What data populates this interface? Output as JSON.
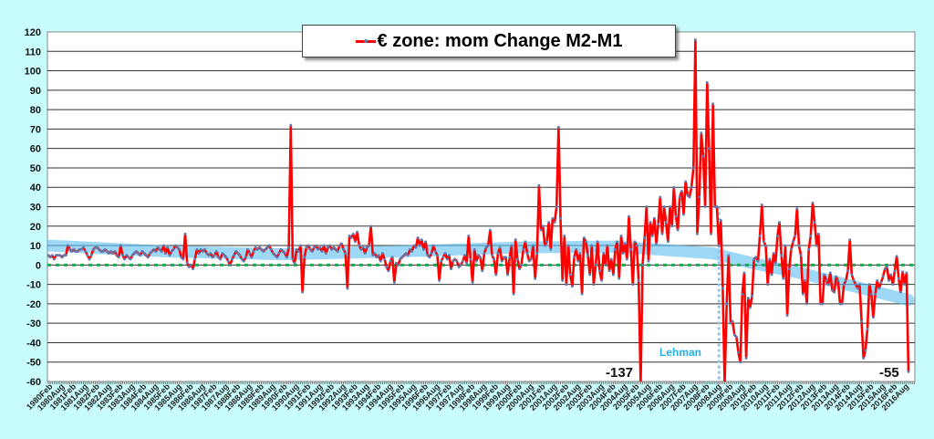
{
  "chart_data": {
    "type": "line",
    "title": "€ zone: mom Change M2-M1",
    "legend": {
      "label": "€ zone: mom Change M2-M1",
      "placement": "top-center"
    },
    "xlabel": "",
    "ylabel": "",
    "ylim": [
      -60,
      120
    ],
    "yticks": [
      120,
      110,
      100,
      90,
      80,
      70,
      60,
      50,
      40,
      30,
      20,
      10,
      0,
      -10,
      -20,
      -30,
      -40,
      -50,
      -60
    ],
    "grid": true,
    "start": "1980Jan",
    "frequency": "monthly",
    "x_tick_labels": [
      "1980Feb",
      "1980Aug",
      "1981Feb",
      "1981Aug",
      "1982Feb",
      "1982Aug",
      "1983Feb",
      "1983Aug",
      "1984Feb",
      "1984Aug",
      "1985Feb",
      "1985Aug",
      "1986Feb",
      "1986Aug",
      "1987Feb",
      "1987Aug",
      "1988Feb",
      "1988Aug",
      "1989Feb",
      "1989Aug",
      "1990Feb",
      "1990Aug",
      "1991Feb",
      "1991Aug",
      "1992Feb",
      "1992Aug",
      "1993Feb",
      "1993Aug",
      "1994Feb",
      "1994Aug",
      "1995Feb",
      "1995Aug",
      "1996Feb",
      "1996Aug",
      "1997Feb",
      "1997Aug",
      "1998Feb",
      "1998Aug",
      "1999Feb",
      "1999Aug",
      "2000Feb",
      "2000Aug",
      "2001Feb",
      "2001Aug",
      "2002Feb",
      "2002Aug",
      "2003Feb",
      "2003Aug",
      "2004Feb",
      "2004Aug",
      "2005Feb",
      "2005Aug",
      "2006Feb",
      "2006Aug",
      "2007Feb",
      "2007Aug",
      "2008Feb",
      "2008Aug",
      "2009Feb",
      "2009Aug",
      "2010Feb",
      "2010Aug",
      "2011Feb",
      "2011Aug",
      "2012Feb",
      "2012Aug",
      "2013Feb",
      "2013Aug",
      "2014Feb",
      "2014Aug",
      "2015Feb",
      "2015Aug",
      "2016Feb",
      "2016Aug"
    ],
    "series": [
      {
        "name": "€ zone: mom Change M2-M1",
        "color": "#ff0000",
        "marker_color": "#5a7db5",
        "values": [
          5,
          4,
          5,
          3,
          5,
          5,
          5,
          4,
          5,
          5,
          10,
          8,
          7,
          8,
          7,
          7,
          8,
          8,
          9,
          7,
          5,
          3,
          5,
          8,
          9,
          9,
          8,
          7,
          7,
          8,
          7,
          6,
          7,
          6,
          7,
          5,
          4,
          10,
          5,
          3,
          5,
          4,
          3,
          5,
          6,
          7,
          6,
          5,
          7,
          6,
          5,
          4,
          6,
          7,
          8,
          7,
          9,
          8,
          7,
          10,
          6,
          9,
          5,
          7,
          8,
          10,
          9,
          8,
          4,
          3,
          16,
          1,
          -1,
          0,
          -2,
          3,
          8,
          6,
          8,
          7,
          8,
          6,
          5,
          6,
          4,
          5,
          7,
          4,
          3,
          6,
          5,
          4,
          2,
          0,
          3,
          5,
          7,
          6,
          5,
          3,
          2,
          4,
          8,
          6,
          4,
          7,
          9,
          8,
          9,
          8,
          7,
          8,
          9,
          10,
          8,
          6,
          5,
          4,
          6,
          8,
          7,
          6,
          4,
          9,
          72,
          3,
          1,
          8,
          7,
          10,
          -14,
          4,
          9,
          10,
          8,
          7,
          9,
          10,
          8,
          9,
          7,
          10,
          6,
          9,
          10,
          8,
          9,
          8,
          7,
          10,
          11,
          8,
          6,
          -12,
          15,
          14,
          16,
          12,
          17,
          10,
          8,
          9,
          6,
          9,
          10,
          20,
          5,
          6,
          4,
          5,
          2,
          6,
          3,
          -1,
          -3,
          2,
          4,
          -9,
          1,
          0,
          3,
          4,
          5,
          6,
          5,
          8,
          7,
          10,
          9,
          14,
          10,
          13,
          8,
          12,
          5,
          4,
          6,
          10,
          7,
          5,
          -8,
          2,
          4,
          6,
          3,
          5,
          -2,
          2,
          3,
          2,
          -1,
          0,
          2,
          5,
          1,
          15,
          3,
          -9,
          8,
          2,
          5,
          4,
          -3,
          6,
          9,
          10,
          18,
          5,
          3,
          -5,
          6,
          9,
          2,
          4,
          4,
          -5,
          4,
          10,
          -15,
          13,
          3,
          -2,
          0,
          8,
          12,
          6,
          2,
          3,
          10,
          -7,
          6,
          41,
          18,
          20,
          10,
          12,
          22,
          8,
          24,
          22,
          30,
          71,
          24,
          -8,
          15,
          -10,
          10,
          -5,
          -11,
          4,
          8,
          2,
          6,
          -15,
          14,
          12,
          5,
          -5,
          10,
          -10,
          0,
          12,
          -3,
          -8,
          6,
          0,
          10,
          -3,
          3,
          -5,
          8,
          12,
          -7,
          15,
          6,
          11,
          3,
          25,
          8,
          -10,
          12,
          10,
          -8,
          -137,
          0,
          14,
          30,
          2,
          22,
          15,
          24,
          11,
          21,
          35,
          16,
          30,
          22,
          12,
          30,
          20,
          40,
          25,
          18,
          35,
          38,
          26,
          43,
          36,
          35,
          40,
          50,
          116,
          16,
          35,
          68,
          56,
          30,
          94,
          60,
          16,
          83,
          30,
          30,
          10,
          23,
          -12,
          -65,
          -20,
          5,
          -30,
          -29,
          -36,
          -37,
          -45,
          -50,
          -15,
          -4,
          -48,
          -17,
          -22,
          -16,
          3,
          4,
          2,
          15,
          31,
          12,
          10,
          -10,
          3,
          -5,
          6,
          1,
          15,
          22,
          5,
          -7,
          10,
          -26,
          -2,
          8,
          12,
          15,
          29,
          10,
          5,
          -15,
          -8,
          -20,
          8,
          15,
          32,
          22,
          10,
          16,
          -20,
          -20,
          -5,
          -8,
          -10,
          -4,
          -13,
          -14,
          -6,
          -8,
          -20,
          -20,
          -10,
          -8,
          -3,
          13,
          -5,
          -8,
          -10,
          -12,
          -10,
          -29,
          -48,
          -44,
          -33,
          -10,
          -15,
          -27,
          -15,
          -8,
          -12,
          -9,
          -6,
          -2,
          -1,
          -8,
          -5,
          -10,
          -3,
          4.5,
          -7,
          -14,
          -3.5,
          -10,
          -4,
          -55
        ]
      }
    ],
    "trend": {
      "color": "#5bc0f0",
      "points": [
        [
          0,
          10
        ],
        [
          60,
          7
        ],
        [
          120,
          5.5
        ],
        [
          180,
          7
        ],
        [
          240,
          9
        ],
        [
          290,
          9.5
        ],
        [
          340,
          6
        ],
        [
          360,
          1
        ],
        [
          384,
          -4
        ],
        [
          408,
          -10
        ],
        [
          440,
          -18
        ]
      ]
    },
    "reference_lines": [
      {
        "type": "horizontal",
        "value": 0,
        "color": "#10b050",
        "style": "dotted"
      },
      {
        "type": "vertical",
        "at_index": 344,
        "label": "Lehman",
        "color": "#8fc4ea",
        "style": "dotted"
      }
    ],
    "annotations": [
      {
        "text": "-137",
        "refers_to": "2005Apr"
      },
      {
        "text": "-55",
        "refers_to": "2016Sep"
      }
    ]
  }
}
